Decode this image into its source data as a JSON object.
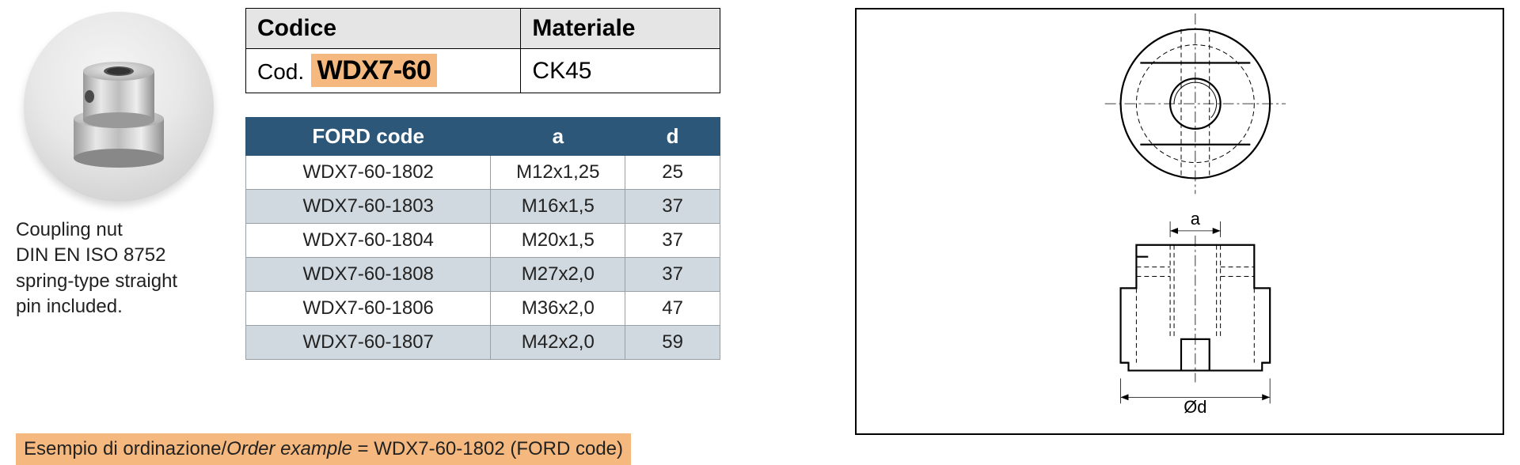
{
  "product": {
    "caption_line1": "Coupling nut",
    "caption_line2": "DIN EN ISO 8752",
    "caption_line3": "spring-type straight",
    "caption_line4": "pin included."
  },
  "info_table": {
    "header_code": "Codice",
    "header_material": "Materiale",
    "code_prefix": "Cod.",
    "code_value": "WDX7-60",
    "material_value": "CK45",
    "highlight_color": "#f5b87f",
    "header_bg": "#e5e5e5"
  },
  "data_table": {
    "header_bg": "#2c5779",
    "header_fg": "#ffffff",
    "row_alt_bg": "#d0d9df",
    "border_color": "#989fa5",
    "columns": [
      "FORD code",
      "a",
      "d"
    ],
    "rows": [
      [
        "WDX7-60-1802",
        "M12x1,25",
        "25"
      ],
      [
        "WDX7-60-1803",
        "M16x1,5",
        "37"
      ],
      [
        "WDX7-60-1804",
        "M20x1,5",
        "37"
      ],
      [
        "WDX7-60-1808",
        "M27x2,0",
        "37"
      ],
      [
        "WDX7-60-1806",
        "M36x2,0",
        "47"
      ],
      [
        "WDX7-60-1807",
        "M42x2,0",
        "59"
      ]
    ]
  },
  "order_example": {
    "label_it": "Esempio di ordinazione",
    "label_en": "Order example",
    "separator": " = ",
    "value": "WDX7-60-1802 (FORD code)",
    "bg": "#f5b87f"
  },
  "drawing": {
    "dim_labels": {
      "a": "a",
      "d": "Ød"
    },
    "stroke_main": "#000000",
    "stroke_hidden": "#000000",
    "stroke_dim": "#000000",
    "hatch_color": "#666666",
    "stroke_main_w": 2.2,
    "stroke_thin_w": 0.8,
    "dash_hidden": "6 4",
    "dash_center": "14 4 3 4"
  }
}
